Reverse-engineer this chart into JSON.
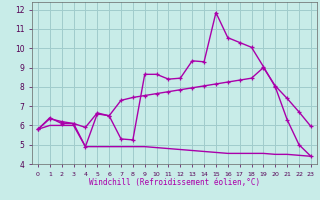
{
  "xlabel": "Windchill (Refroidissement éolien,°C)",
  "bg_color": "#c8ece8",
  "grid_color": "#a0cccc",
  "line_color": "#aa00aa",
  "xlim": [
    -0.5,
    23.5
  ],
  "ylim": [
    4,
    12.4
  ],
  "yticks": [
    4,
    5,
    6,
    7,
    8,
    9,
    10,
    11,
    12
  ],
  "xticks": [
    0,
    1,
    2,
    3,
    4,
    5,
    6,
    7,
    8,
    9,
    10,
    11,
    12,
    13,
    14,
    15,
    16,
    17,
    18,
    19,
    20,
    21,
    22,
    23
  ],
  "line1_x": [
    0,
    1,
    2,
    3,
    4,
    5,
    6,
    7,
    8,
    9,
    10,
    11,
    12,
    13,
    14,
    15,
    16,
    17,
    18,
    19,
    20,
    21,
    22,
    23
  ],
  "line1_y": [
    5.8,
    6.4,
    6.1,
    6.1,
    4.9,
    6.6,
    6.5,
    5.3,
    5.25,
    8.65,
    8.65,
    8.4,
    8.45,
    9.35,
    9.3,
    11.85,
    10.55,
    10.3,
    10.05,
    9.05,
    8.0,
    6.3,
    5.0,
    4.4
  ],
  "line2_x": [
    0,
    1,
    2,
    3,
    4,
    5,
    6,
    7,
    8,
    9,
    10,
    11,
    12,
    13,
    14,
    15,
    16,
    17,
    18,
    19,
    20,
    21,
    22,
    23
  ],
  "line2_y": [
    5.8,
    6.35,
    6.2,
    6.1,
    5.9,
    6.65,
    6.5,
    7.3,
    7.45,
    7.55,
    7.65,
    7.75,
    7.85,
    7.95,
    8.05,
    8.15,
    8.25,
    8.35,
    8.45,
    9.0,
    8.05,
    7.4,
    6.7,
    5.95
  ],
  "line3_x": [
    0,
    1,
    2,
    3,
    4,
    5,
    6,
    7,
    8,
    9,
    10,
    11,
    12,
    13,
    14,
    15,
    16,
    17,
    18,
    19,
    20,
    21,
    22,
    23
  ],
  "line3_y": [
    5.8,
    6.0,
    6.0,
    6.0,
    4.9,
    4.9,
    4.9,
    4.9,
    4.9,
    4.9,
    4.85,
    4.8,
    4.75,
    4.7,
    4.65,
    4.6,
    4.55,
    4.55,
    4.55,
    4.55,
    4.5,
    4.5,
    4.45,
    4.4
  ]
}
